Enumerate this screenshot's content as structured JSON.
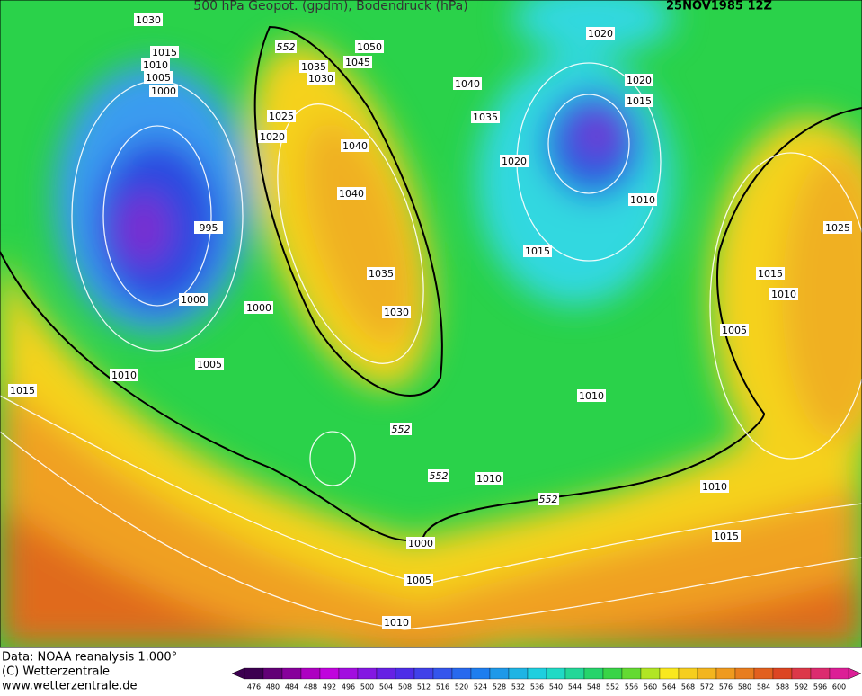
{
  "header": {
    "title": "500 hPa Geopot. (gpdm), Bodendruck (hPa)",
    "date": "25NOV1985 12Z"
  },
  "footer": {
    "source": "Data: NOAA reanalysis 1.000°",
    "copyright": "(C) Wetterzentrale",
    "url": "www.wetterzentrale.de"
  },
  "colorbar": {
    "labels": [
      476,
      480,
      484,
      488,
      492,
      496,
      500,
      504,
      508,
      512,
      516,
      520,
      524,
      528,
      532,
      536,
      540,
      544,
      548,
      552,
      556,
      560,
      564,
      568,
      572,
      576,
      580,
      584,
      588,
      592,
      596,
      600
    ]
  },
  "isobar_labels": [
    1030,
    1015,
    1010,
    1005,
    1000,
    995,
    1000,
    1005,
    1010,
    1015,
    1000,
    1025,
    1020,
    1035,
    1030,
    1050,
    1045,
    1040,
    1040,
    1035,
    1030,
    1040,
    1035,
    1020,
    1015,
    1010,
    1020,
    1020,
    1015,
    1025,
    1015,
    1010,
    1005,
    1010,
    1010,
    1010,
    1015,
    1000,
    1005,
    1010
  ],
  "contour_labels": [
    552,
    552,
    552,
    552
  ]
}
